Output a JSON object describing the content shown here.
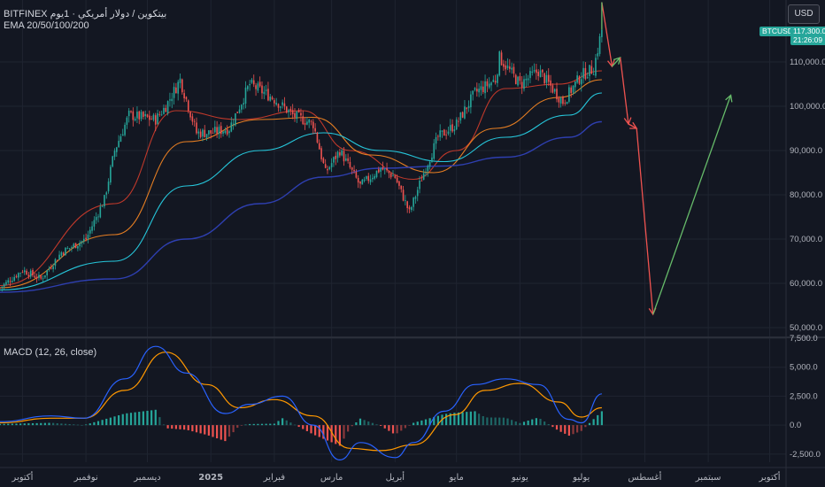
{
  "legend": {
    "exchange": "BITFINEX",
    "pair_info": "بيتكوين / دولار أمريكي · 1يوم",
    "ema": "EMA 20/50/100/200",
    "macd": "MACD (12, 26, close)"
  },
  "currency_button": "USD",
  "price_tags": {
    "symbol": "BTCUSD",
    "price": "117,300.0",
    "countdown": "21:26:09"
  },
  "colors": {
    "background": "#131722",
    "grid": "#1f2430",
    "up": "#26a69a",
    "down": "#ef5350",
    "ema20": "#c0392b",
    "ema50": "#e67e22",
    "ema100": "#26c6da",
    "ema200": "#2e3fb0",
    "macd_line": "#2962ff",
    "signal_line": "#ff9800",
    "projection_down": "#ef5350",
    "projection_up": "#66bb6a"
  },
  "chart_data": [
    {
      "type": "candlestick",
      "title": "",
      "price_range": [
        48000,
        124000
      ],
      "y_ticks": [
        50000,
        60000,
        70000,
        80000,
        90000,
        100000,
        110000
      ],
      "y_tick_labels": [
        "50,000.0",
        "60,000.0",
        "70,000.0",
        "80,000.0",
        "90,000.0",
        "100,000.0",
        "110,000.0"
      ],
      "x_labels": [
        "أكتوبر",
        "نوفمبر",
        "ديسمبر",
        "2025",
        "فبراير",
        "مارس",
        "أبريل",
        "مايو",
        "يونيو",
        "يوليو",
        "أغسطس",
        "سبتمبر",
        "أكتوبر"
      ],
      "x_months": [
        "2024-10",
        "2024-11",
        "2024-12",
        "2025-01",
        "2025-02",
        "2025-03",
        "2025-04",
        "2025-05",
        "2025-06",
        "2025-07",
        "2025-08",
        "2025-09",
        "2025-10"
      ],
      "close_path": [
        [
          "2024-09-20",
          59000
        ],
        [
          "2024-10-01",
          63000
        ],
        [
          "2024-10-10",
          61000
        ],
        [
          "2024-10-20",
          67000
        ],
        [
          "2024-11-01",
          70000
        ],
        [
          "2024-11-10",
          79000
        ],
        [
          "2024-11-15",
          90000
        ],
        [
          "2024-11-22",
          98000
        ],
        [
          "2024-12-05",
          97000
        ],
        [
          "2024-12-10",
          100000
        ],
        [
          "2024-12-17",
          106000
        ],
        [
          "2024-12-25",
          94000
        ],
        [
          "2025-01-01",
          94000
        ],
        [
          "2025-01-10",
          95000
        ],
        [
          "2025-01-20",
          105000
        ],
        [
          "2025-01-31",
          102000
        ],
        [
          "2025-02-10",
          98000
        ],
        [
          "2025-02-20",
          96000
        ],
        [
          "2025-02-26",
          85000
        ],
        [
          "2025-03-05",
          90000
        ],
        [
          "2025-03-15",
          82000
        ],
        [
          "2025-03-25",
          86000
        ],
        [
          "2025-04-01",
          84000
        ],
        [
          "2025-04-08",
          76000
        ],
        [
          "2025-04-15",
          85000
        ],
        [
          "2025-04-22",
          93000
        ],
        [
          "2025-05-01",
          96000
        ],
        [
          "2025-05-10",
          103000
        ],
        [
          "2025-05-20",
          106000
        ],
        [
          "2025-05-22",
          111000
        ],
        [
          "2025-06-01",
          105000
        ],
        [
          "2025-06-10",
          108000
        ],
        [
          "2025-06-22",
          101000
        ],
        [
          "2025-07-01",
          107000
        ],
        [
          "2025-07-07",
          108500
        ],
        [
          "2025-07-11",
          117300
        ]
      ],
      "ema_series": [
        {
          "name": "EMA 20",
          "points": [
            [
              "2024-09-20",
              59500
            ],
            [
              "2024-11-15",
              78000
            ],
            [
              "2024-12-15",
              99000
            ],
            [
              "2025-01-15",
              97000
            ],
            [
              "2025-02-15",
              99000
            ],
            [
              "2025-03-10",
              90000
            ],
            [
              "2025-04-10",
              83500
            ],
            [
              "2025-05-01",
              90000
            ],
            [
              "2025-05-25",
              104000
            ],
            [
              "2025-06-20",
              105000
            ],
            [
              "2025-07-11",
              108000
            ]
          ]
        },
        {
          "name": "EMA 50",
          "points": [
            [
              "2024-09-20",
              59000
            ],
            [
              "2024-11-15",
              71000
            ],
            [
              "2024-12-20",
              92000
            ],
            [
              "2025-01-25",
              97000
            ],
            [
              "2025-02-20",
              97500
            ],
            [
              "2025-03-20",
              89000
            ],
            [
              "2025-04-20",
              85000
            ],
            [
              "2025-05-20",
              95000
            ],
            [
              "2025-06-20",
              102000
            ],
            [
              "2025-07-11",
              106000
            ]
          ]
        },
        {
          "name": "EMA 100",
          "points": [
            [
              "2024-09-20",
              58500
            ],
            [
              "2024-11-15",
              65000
            ],
            [
              "2024-12-20",
              82000
            ],
            [
              "2025-01-25",
              90000
            ],
            [
              "2025-02-25",
              94000
            ],
            [
              "2025-03-25",
              90000
            ],
            [
              "2025-04-25",
              87500
            ],
            [
              "2025-05-25",
              93000
            ],
            [
              "2025-06-25",
              98000
            ],
            [
              "2025-07-11",
              103000
            ]
          ]
        },
        {
          "name": "EMA 200",
          "points": [
            [
              "2024-09-20",
              58000
            ],
            [
              "2024-11-15",
              61000
            ],
            [
              "2024-12-20",
              70000
            ],
            [
              "2025-01-25",
              78000
            ],
            [
              "2025-02-25",
              84000
            ],
            [
              "2025-03-25",
              86000
            ],
            [
              "2025-04-25",
              86500
            ],
            [
              "2025-05-25",
              88500
            ],
            [
              "2025-06-25",
              93000
            ],
            [
              "2025-07-11",
              96500
            ]
          ]
        }
      ],
      "projection": [
        [
          "2025-07-11",
          123500
        ],
        [
          "2025-07-16",
          109000
        ],
        [
          "2025-07-20",
          111000
        ],
        [
          "2025-07-24",
          96000
        ],
        [
          "2025-07-28",
          95000
        ],
        [
          "2025-08-05",
          53000
        ],
        [
          "2025-09-12",
          102500
        ]
      ]
    },
    {
      "type": "macd",
      "title": "MACD (12, 26, close)",
      "y_range": [
        -3200,
        7500
      ],
      "y_ticks": [
        -2500,
        0,
        2500,
        5000,
        7500
      ],
      "y_tick_labels": [
        "-2,500.0",
        "0.0",
        "2,500.0",
        "5,000.0",
        "7,500.0"
      ],
      "macd_path": [
        [
          "2024-09-20",
          300
        ],
        [
          "2024-10-15",
          800
        ],
        [
          "2024-10-31",
          600
        ],
        [
          "2024-11-20",
          4000
        ],
        [
          "2024-12-05",
          6800
        ],
        [
          "2024-12-20",
          4500
        ],
        [
          "2025-01-08",
          1000
        ],
        [
          "2025-01-20",
          1800
        ],
        [
          "2025-02-05",
          2500
        ],
        [
          "2025-02-20",
          0
        ],
        [
          "2025-03-05",
          -3000
        ],
        [
          "2025-03-15",
          -1500
        ],
        [
          "2025-04-01",
          -2800
        ],
        [
          "2025-04-10",
          -1500
        ],
        [
          "2025-04-25",
          1200
        ],
        [
          "2025-05-10",
          3500
        ],
        [
          "2025-05-25",
          4000
        ],
        [
          "2025-06-10",
          3500
        ],
        [
          "2025-06-25",
          500
        ],
        [
          "2025-07-01",
          200
        ],
        [
          "2025-07-11",
          2700
        ]
      ],
      "signal_path": [
        [
          "2024-09-20",
          200
        ],
        [
          "2024-10-15",
          600
        ],
        [
          "2024-10-31",
          600
        ],
        [
          "2024-11-20",
          3000
        ],
        [
          "2024-12-10",
          6300
        ],
        [
          "2024-12-30",
          3500
        ],
        [
          "2025-01-15",
          1500
        ],
        [
          "2025-02-01",
          2200
        ],
        [
          "2025-02-20",
          800
        ],
        [
          "2025-03-10",
          -2000
        ],
        [
          "2025-03-25",
          -2200
        ],
        [
          "2025-04-10",
          -1700
        ],
        [
          "2025-04-30",
          900
        ],
        [
          "2025-05-15",
          3000
        ],
        [
          "2025-06-01",
          3600
        ],
        [
          "2025-06-20",
          2000
        ],
        [
          "2025-07-01",
          700
        ],
        [
          "2025-07-11",
          1500
        ]
      ]
    }
  ]
}
